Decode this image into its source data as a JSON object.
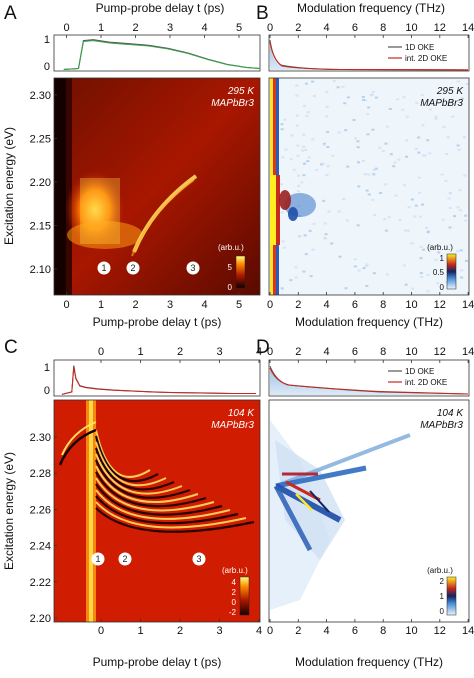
{
  "chart_data": [
    {
      "panel": "A",
      "type": "heatmap",
      "top_trace": {
        "type": "line",
        "xlim": [
          -0.5,
          5.8
        ],
        "ylim": [
          0,
          1.1
        ],
        "yticks": [
          "0",
          "1"
        ],
        "x": [
          -0.2,
          0.25,
          0.4,
          0.7,
          1.2,
          1.8,
          2.4,
          3.0,
          3.6,
          4.2,
          4.8,
          5.4,
          5.8
        ],
        "y": [
          0.02,
          0.05,
          0.95,
          0.98,
          0.9,
          0.85,
          0.8,
          0.7,
          0.55,
          0.35,
          0.18,
          0.08,
          0.05
        ]
      },
      "xlabel_top": "Pump-probe delay t (ps)",
      "xlabel": "Pump-probe delay t (ps)",
      "ylabel": "Excitation energy (eV)",
      "xticks": [
        "0",
        "1",
        "2",
        "3",
        "4",
        "5"
      ],
      "yticks": [
        "2.30",
        "2.25",
        "2.20",
        "2.15",
        "2.10"
      ],
      "annotation": [
        "295 K",
        "MAPbBr3"
      ],
      "markers": [
        "1",
        "2",
        "3"
      ],
      "colorbar": {
        "label": "(arb.u.)",
        "ticks": [
          "5",
          "0"
        ]
      }
    },
    {
      "panel": "B",
      "type": "heatmap",
      "top_trace": {
        "type": "line",
        "xlim": [
          0,
          15
        ],
        "legend": [
          "1D OKE",
          "int. 2D OKE"
        ]
      },
      "xlabel_top": "Modulation frequency (THz)",
      "xlabel": "Modulation frequency (THz)",
      "xticks": [
        "0",
        "2",
        "4",
        "6",
        "8",
        "10",
        "12",
        "14"
      ],
      "annotation": [
        "295 K",
        "MAPbBr3"
      ],
      "colorbar": {
        "label": "(arb.u.)",
        "ticks": [
          "1",
          "0.5",
          "0"
        ]
      }
    },
    {
      "panel": "C",
      "type": "heatmap",
      "top_trace": {
        "type": "line",
        "xlim": [
          -0.5,
          4.7
        ],
        "ylim": [
          0,
          1.1
        ],
        "yticks": [
          "0",
          "1"
        ],
        "x": [
          -0.3,
          -0.05,
          0.0,
          0.05,
          0.15,
          0.3,
          0.6,
          1.0,
          1.5,
          2.0,
          2.5,
          3.0,
          3.5,
          4.0,
          4.6
        ],
        "y": [
          0.02,
          0.1,
          0.95,
          0.55,
          0.3,
          0.25,
          0.2,
          0.16,
          0.13,
          0.1,
          0.08,
          0.07,
          0.06,
          0.05,
          0.05
        ]
      },
      "xlabel": "Pump-probe delay t (ps)",
      "ylabel": "Excitation energy (eV)",
      "xticks": [
        "0",
        "1",
        "2",
        "3",
        "4"
      ],
      "yticks": [
        "2.30",
        "2.28",
        "2.26",
        "2.24",
        "2.22",
        "2.20"
      ],
      "annotation": [
        "104 K",
        "MAPbBr3"
      ],
      "markers": [
        "1",
        "2",
        "3"
      ],
      "colorbar": {
        "label": "(arb.u.)",
        "ticks": [
          "4",
          "2",
          "0",
          "-2"
        ]
      }
    },
    {
      "panel": "D",
      "type": "heatmap",
      "top_trace": {
        "type": "line",
        "xlim": [
          0,
          15
        ],
        "legend": [
          "1D OKE",
          "int. 2D OKE"
        ]
      },
      "xlabel": "Modulation frequency (THz)",
      "xticks": [
        "0",
        "2",
        "4",
        "6",
        "8",
        "10",
        "12",
        "14"
      ],
      "annotation": [
        "104 K",
        "MAPbBr3"
      ],
      "colorbar": {
        "label": "(arb.u.)",
        "ticks": [
          "2",
          "1",
          "0"
        ]
      }
    }
  ],
  "panels": {
    "A": {
      "letter": "A"
    },
    "B": {
      "letter": "B"
    },
    "C": {
      "letter": "C"
    },
    "D": {
      "letter": "D"
    }
  },
  "colors": {
    "heat_dark": "#150000",
    "heat_red": "#d01c00",
    "heat_yellow": "#ffff30",
    "blue_main": "#1f5cb0",
    "trace_red": "#c8281e",
    "trace_gray": "#555555"
  }
}
